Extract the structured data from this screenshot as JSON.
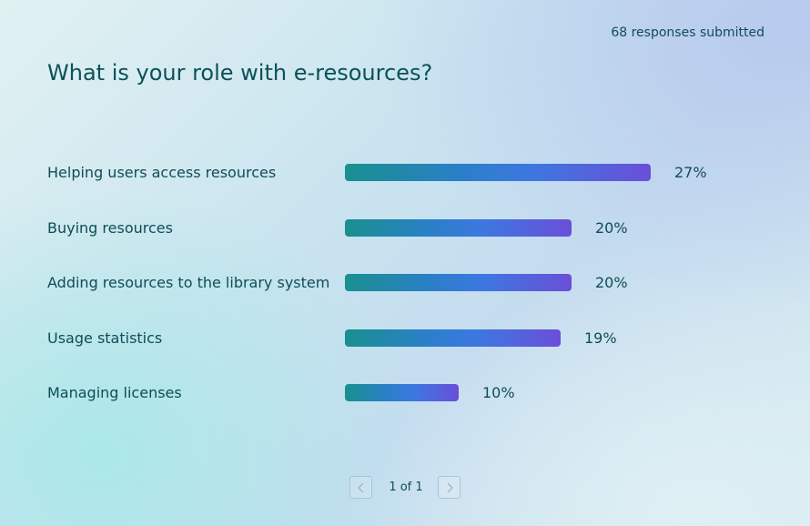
{
  "header": {
    "responses": "68 responses submitted",
    "title": "What is your role with e-resources?"
  },
  "chart_data": {
    "type": "bar",
    "orientation": "horizontal",
    "categories": [
      "Helping users access resources",
      "Buying resources",
      "Adding resources to the library system",
      "Usage statistics",
      "Managing licenses"
    ],
    "values": [
      27,
      20,
      20,
      19,
      10
    ],
    "value_labels": [
      "27%",
      "20%",
      "20%",
      "19%",
      "10%"
    ],
    "unit": "%",
    "grid": false,
    "legend": "none",
    "colors": {
      "bar_start": "#19908f",
      "bar_mid": "#3c78e0",
      "bar_end": "#6a4fd8",
      "text": "#0e4d57"
    }
  },
  "pagination": {
    "text": "1 of 1",
    "prev_icon": "chevron-left-icon",
    "next_icon": "chevron-right-icon"
  }
}
